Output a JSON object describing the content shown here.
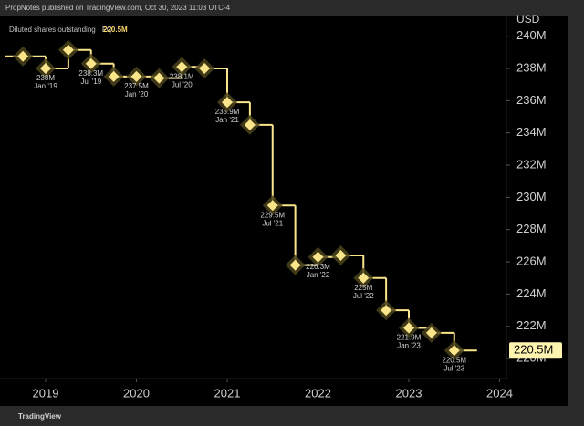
{
  "header": "PropNotes published on TradingView.com, Oct 30, 2023 11:03 UTC-4",
  "footer": "TradingView",
  "chart_data": {
    "type": "step",
    "title": "Diluted shares outstanding · FQ",
    "currency": "USD",
    "x": [
      "2018-10",
      "2019-01",
      "2019-04",
      "2019-07",
      "2019-10",
      "2020-01",
      "2020-04",
      "2020-07",
      "2020-10",
      "2021-01",
      "2021-04",
      "2021-07",
      "2021-10",
      "2022-01",
      "2022-04",
      "2022-07",
      "2022-10",
      "2023-01",
      "2023-04",
      "2023-07"
    ],
    "values": [
      238.75,
      238,
      239.15,
      238.3,
      237.5,
      237.5,
      237.4,
      238.1,
      238,
      235.9,
      234.5,
      229.5,
      225.8,
      226.3,
      226.4,
      225,
      223,
      221.9,
      221.6,
      220.5
    ],
    "value_labels": [
      null,
      "238M",
      null,
      "238.3M",
      null,
      "237.5M",
      null,
      "238.1M",
      null,
      "235.9M",
      null,
      "229.5M",
      null,
      "226.3M",
      null,
      "225M",
      null,
      "221.9M",
      null,
      "220.5M"
    ],
    "date_labels": [
      null,
      "Jan '19",
      null,
      "Jul '19",
      null,
      "Jan '20",
      null,
      "Jul '20",
      null,
      "Jan '21",
      null,
      "Jul '21",
      null,
      "Jan '22",
      null,
      "Jul '22",
      null,
      "Jan '23",
      null,
      "Jul '23"
    ],
    "color": "#fbe58a",
    "ylim": [
      219.1,
      241
    ],
    "yticks": [
      {
        "value": 220,
        "label": "220M"
      },
      {
        "value": 222,
        "label": "222M"
      },
      {
        "value": 224,
        "label": "224M"
      },
      {
        "value": 226,
        "label": "226M"
      },
      {
        "value": 228,
        "label": "228M"
      },
      {
        "value": 230,
        "label": "230M"
      },
      {
        "value": 232,
        "label": "232M"
      },
      {
        "value": 234,
        "label": "234M"
      },
      {
        "value": 236,
        "label": "236M"
      },
      {
        "value": 238,
        "label": "238M"
      },
      {
        "value": 240,
        "label": "240M"
      }
    ],
    "xticks": [
      2019,
      2020,
      2021,
      2022,
      2023,
      2024
    ]
  }
}
